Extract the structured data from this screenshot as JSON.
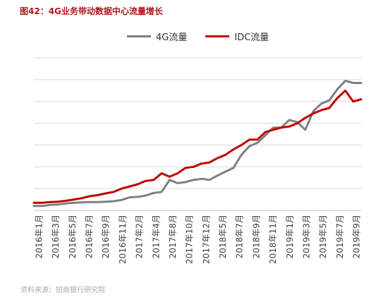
{
  "title": "图42：4G业务带动数据中心流量增长",
  "source": "资料来源：招商银行研究院",
  "colors": {
    "series_4g": "#7f7f7f",
    "series_idc": "#c00000",
    "grid": "#d9d9d9",
    "title": "#b0191e"
  },
  "chart_data": {
    "type": "line",
    "title": "",
    "xlabel": "",
    "ylabel": "",
    "grid": true,
    "legend_position": "top",
    "y_tick_labels_shown": false,
    "ylim": [
      0,
      7
    ],
    "x_tick_labels": [
      "2016年1月",
      "2016年3月",
      "2016年5月",
      "2016年7月",
      "2016年9月",
      "2016年11月",
      "2017年2月",
      "2017年4月",
      "2017年8月",
      "2017年10月",
      "2017年12月",
      "2018年5月",
      "2018年7月",
      "2018年9月",
      "2018年11月",
      "2019年1月",
      "2019年3月",
      "2019年5月",
      "2019年7月",
      "2019年9月"
    ],
    "series": [
      {
        "name": "4G流量",
        "values": [
          0.2,
          0.2,
          0.25,
          0.27,
          0.32,
          0.35,
          0.37,
          0.38,
          0.38,
          0.4,
          0.42,
          0.48,
          0.6,
          0.62,
          0.68,
          0.8,
          0.85,
          1.4,
          1.25,
          1.3,
          1.4,
          1.45,
          1.4,
          1.6,
          1.78,
          1.95,
          2.55,
          2.95,
          3.1,
          3.45,
          3.8,
          3.8,
          4.15,
          4.05,
          3.7,
          4.55,
          4.9,
          5.05,
          5.55,
          5.95,
          5.85,
          5.85
        ]
      },
      {
        "name": "IDC流量",
        "values": [
          0.35,
          0.35,
          0.38,
          0.4,
          0.44,
          0.5,
          0.56,
          0.65,
          0.7,
          0.78,
          0.85,
          1.0,
          1.1,
          1.2,
          1.35,
          1.4,
          1.7,
          1.55,
          1.7,
          1.95,
          2.0,
          2.15,
          2.2,
          2.4,
          2.55,
          2.8,
          3.0,
          3.25,
          3.25,
          3.6,
          3.7,
          3.8,
          3.85,
          4.0,
          4.25,
          4.45,
          4.6,
          4.7,
          5.15,
          5.5,
          5.0,
          5.1
        ]
      }
    ]
  }
}
